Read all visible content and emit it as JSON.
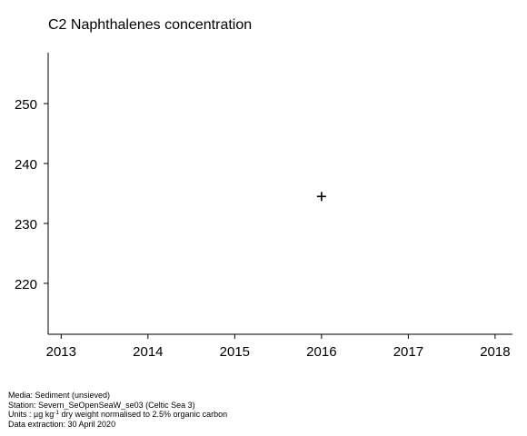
{
  "chart_data": {
    "type": "scatter",
    "title": "C2 Naphthalenes concentration",
    "xlabel": "",
    "ylabel": "",
    "x_ticks": [
      "2013",
      "2014",
      "2015",
      "2016",
      "2017",
      "2018"
    ],
    "y_ticks": [
      "220",
      "230",
      "240",
      "250"
    ],
    "xlim": [
      2012.85,
      2018.2
    ],
    "ylim": [
      211.5,
      258.5
    ],
    "marker": "plus",
    "grid": false,
    "series": [
      {
        "points": [
          {
            "x": 2016,
            "y": 234.5
          }
        ]
      }
    ]
  },
  "footer": {
    "media": "Media: Sediment (unsieved)",
    "station": "Station: Severn_SeOpenSeaW_se03 (Celtic Sea 3)",
    "units_prefix": "Units : µg kg",
    "units_exp": "-1",
    "units_suffix": " dry weight normalised to 2.5% organic carbon",
    "extraction": "Data extraction: 30 April 2020"
  }
}
